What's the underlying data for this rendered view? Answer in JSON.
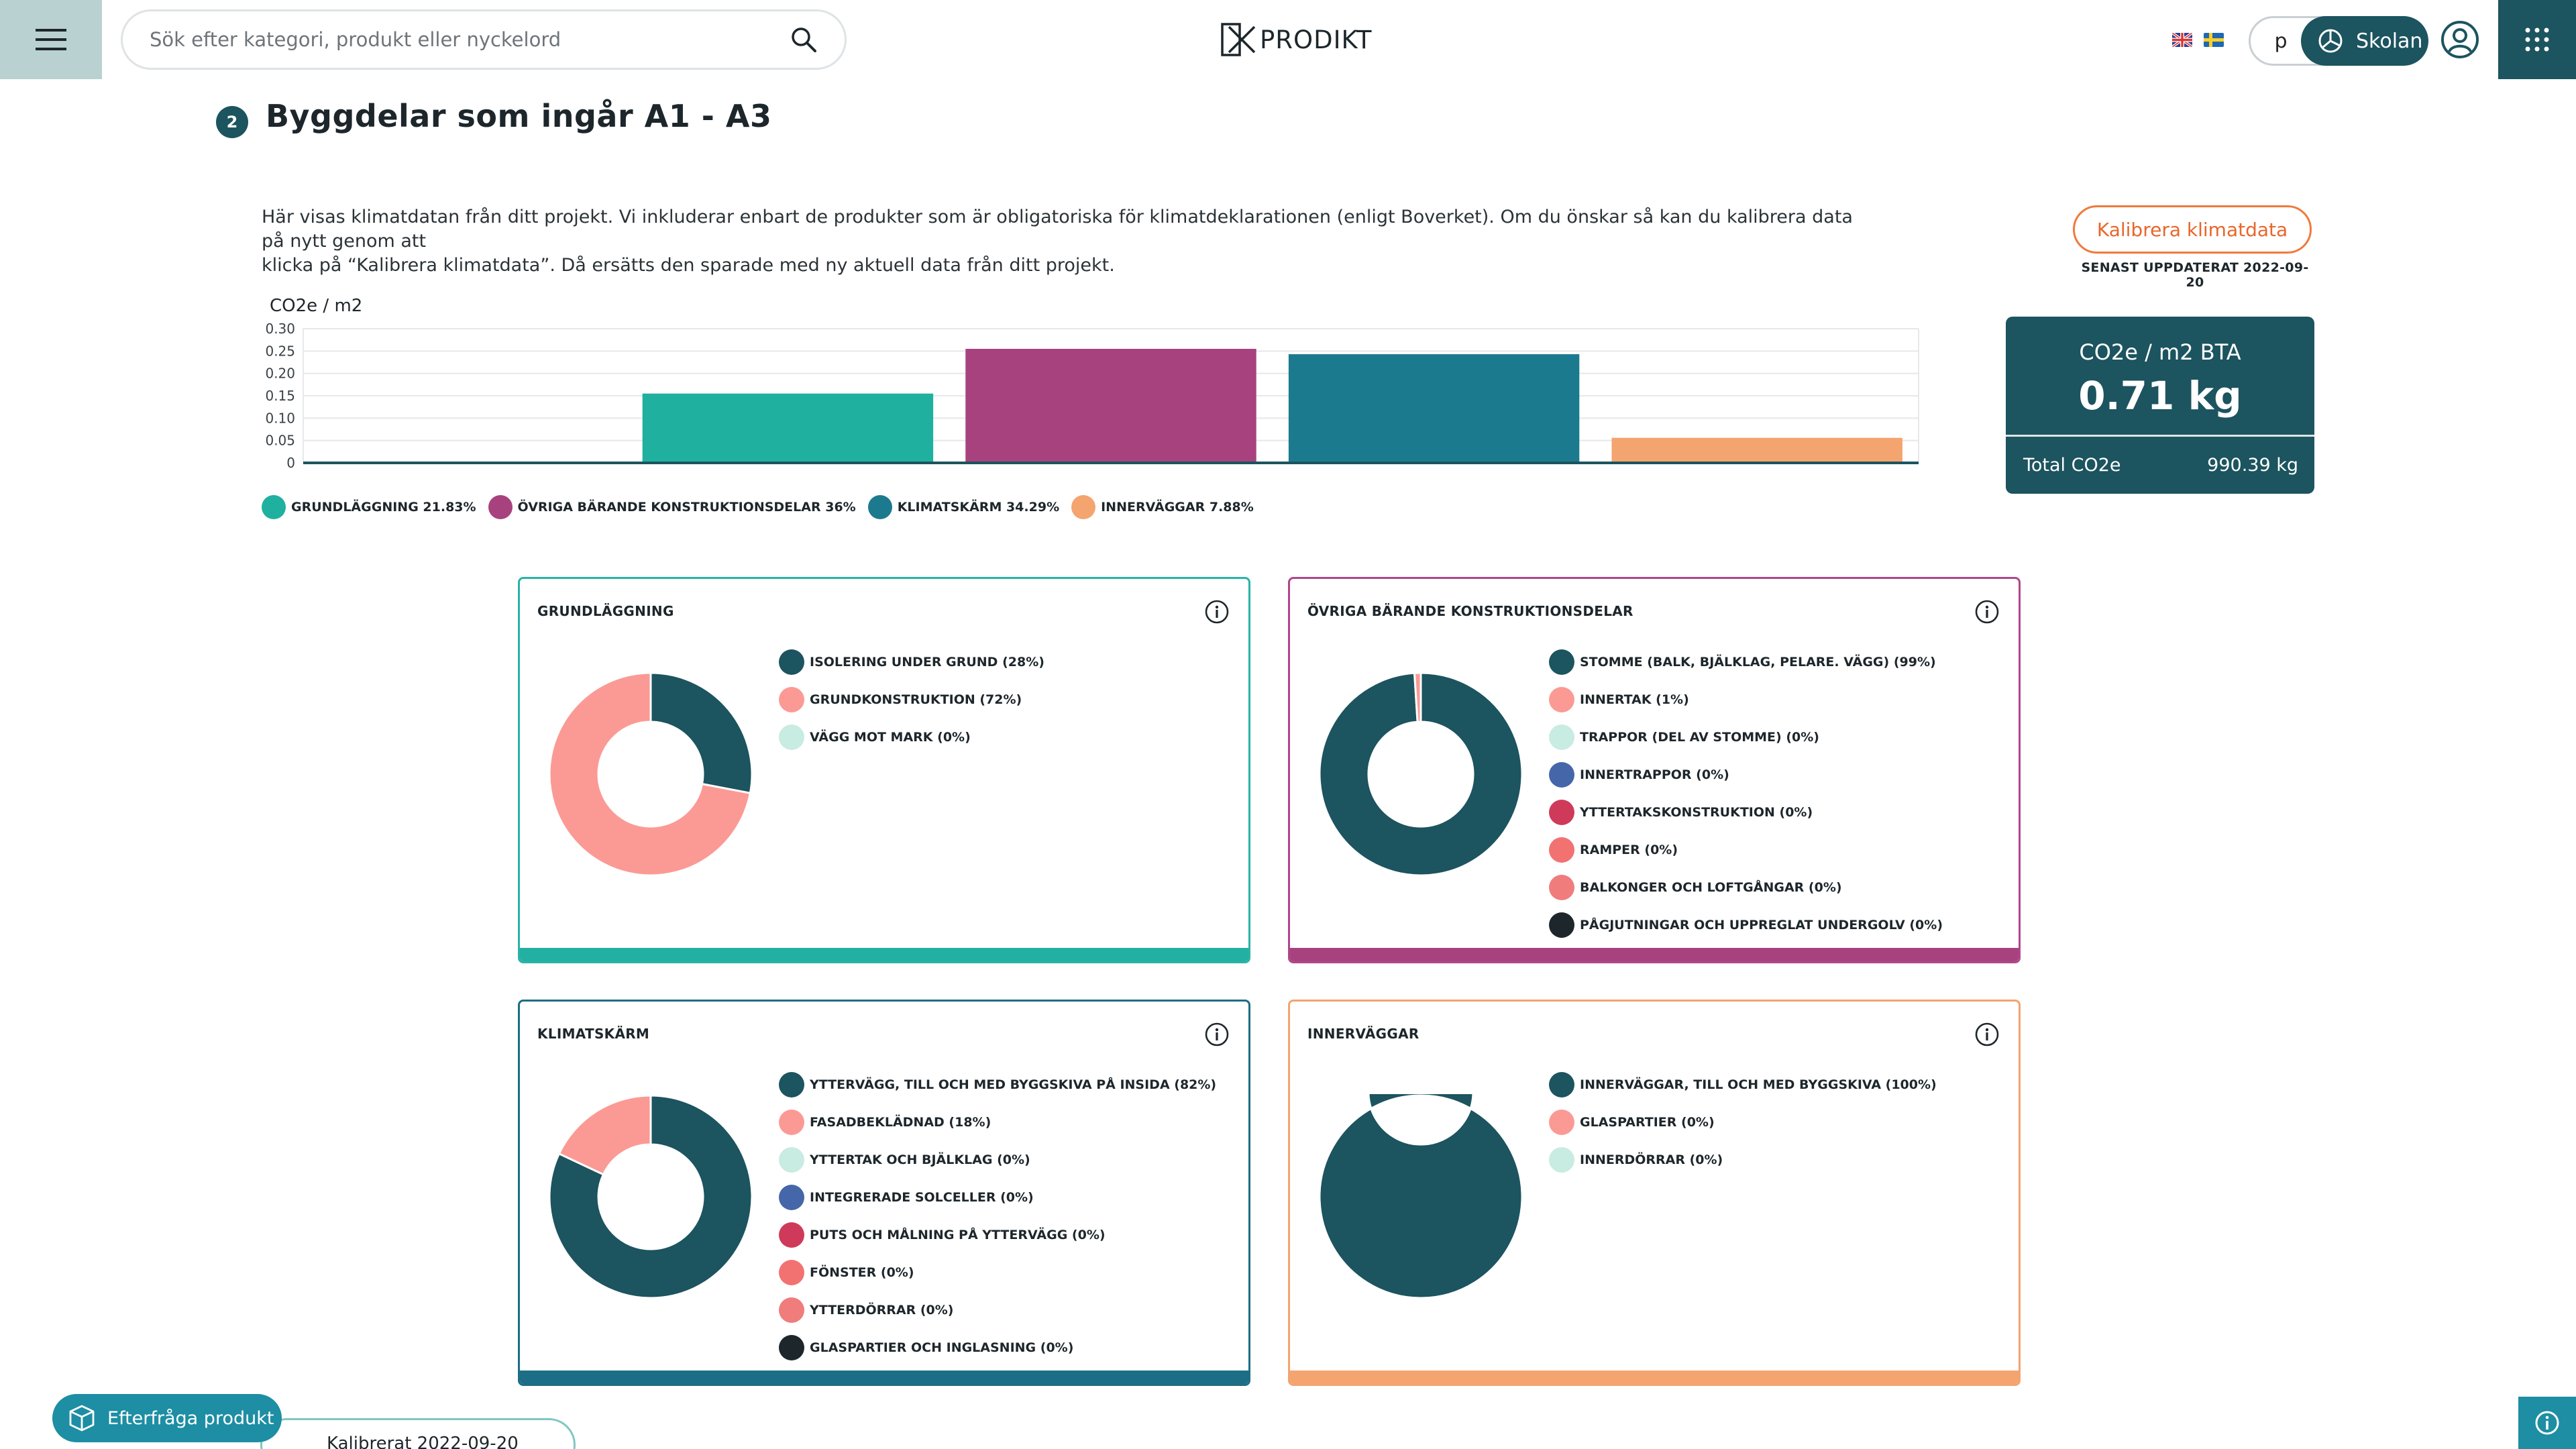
{
  "header": {
    "search_placeholder": "Sök efter kategori, produkt eller nyckelord",
    "logo_text": "PRODIKT",
    "account_initial": "p",
    "school_label": "Skolan",
    "languages": [
      "english-flag",
      "swedish-flag"
    ]
  },
  "section": {
    "step": "2",
    "title": "Byggdelar som ingår A1 - A3",
    "intro_line1": "Här visas klimatdatan från ditt projekt. Vi inkluderar enbart de produkter som är obligatoriska för klimatdeklarationen (enligt Boverket). Om du önskar så kan du kalibrera data på nytt genom att",
    "intro_line2": "klicka på “Kalibrera klimatdata”. Då ersätts den sparade med ny aktuell data från ditt projekt.",
    "calibrate_label": "Kalibrera klimatdata",
    "updated_label": "SENAST UPPDATERAT 2022-09-20"
  },
  "summary": {
    "unit_label": "CO2e / m2 BTA",
    "value": "0.71 kg",
    "total_label": "Total CO2e",
    "total_value": "990.39 kg"
  },
  "chart_data": {
    "type": "bar",
    "ylabel": "CO2e / m2",
    "ylim": [
      0,
      0.3
    ],
    "yticks": [
      "0.30",
      "0.25",
      "0.20",
      "0.15",
      "0.10",
      "0.05",
      "0"
    ],
    "grid": true,
    "legend_position": "bottom-left",
    "categories": [
      "",
      "GRUNDLÄGGNING",
      "ÖVRIGA BÄRANDE KONSTRUKTIONSDELAR",
      "KLIMATSKÄRM",
      "INNERVÄGGAR"
    ],
    "values": [
      0,
      0.155,
      0.255,
      0.243,
      0.056
    ],
    "colors": [
      "#ffffff",
      "#1fb0a0",
      "#a8427f",
      "#1c7a8e",
      "#f4a46f"
    ],
    "legend": [
      {
        "label": "GRUNDLÄGGNING 21.83%",
        "color": "#1fb0a0"
      },
      {
        "label": "ÖVRIGA BÄRANDE KONSTRUKTIONSDELAR 36%",
        "color": "#a8427f"
      },
      {
        "label": "KLIMATSKÄRM 34.29%",
        "color": "#1c7a8e"
      },
      {
        "label": "INNERVÄGGAR 7.88%",
        "color": "#f4a46f"
      }
    ]
  },
  "cards": [
    {
      "title": "GRUNDLÄGGNING",
      "border_color": "#2ab3a6",
      "bar_color": "#22b0a2",
      "slices": [
        28,
        72,
        0
      ],
      "items": [
        {
          "label": "ISOLERING UNDER GRUND (28%)",
          "color": "#1c545f"
        },
        {
          "label": "GRUNDKONSTRUKTION (72%)",
          "color": "#fb9a94"
        },
        {
          "label": "VÄGG MOT MARK (0%)",
          "color": "#c8ebe2"
        }
      ]
    },
    {
      "title": "ÖVRIGA BÄRANDE KONSTRUKTIONSDELAR",
      "border_color": "#b0468a",
      "bar_color": "#a8427f",
      "slices": [
        99,
        1,
        0,
        0,
        0,
        0,
        0,
        0
      ],
      "items": [
        {
          "label": "STOMME (BALK, BJÄLKLAG, PELARE. VÄGG) (99%)",
          "color": "#1c545f"
        },
        {
          "label": "INNERTAK (1%)",
          "color": "#fb9a94"
        },
        {
          "label": "TRAPPOR (DEL AV STOMME) (0%)",
          "color": "#c8ebe2"
        },
        {
          "label": "INNERTRAPPOR (0%)",
          "color": "#4566a8"
        },
        {
          "label": "YTTERTAKSKONSTRUKTION (0%)",
          "color": "#cf3a5a"
        },
        {
          "label": "RAMPER (0%)",
          "color": "#f27272"
        },
        {
          "label": "BALKONGER OCH LOFTGÅNGAR (0%)",
          "color": "#f07c7c"
        },
        {
          "label": "PÅGJUTNINGAR OCH UPPREGLAT UNDERGOLV (0%)",
          "color": "#1d262b"
        }
      ]
    },
    {
      "title": "KLIMATSKÄRM",
      "border_color": "#1d6e84",
      "bar_color": "#1c6e86",
      "slices": [
        82,
        18,
        0,
        0,
        0,
        0,
        0,
        0
      ],
      "items": [
        {
          "label": "YTTERVÄGG, TILL OCH MED BYGGSKIVA PÅ INSIDA (82%)",
          "color": "#1c545f"
        },
        {
          "label": "FASADBEKLÄDNAD (18%)",
          "color": "#fb9a94"
        },
        {
          "label": "YTTERTAK OCH BJÄLKLAG (0%)",
          "color": "#c8ebe2"
        },
        {
          "label": "INTEGRERADE SOLCELLER (0%)",
          "color": "#4566a8"
        },
        {
          "label": "PUTS OCH MÅLNING PÅ YTTERVÄGG (0%)",
          "color": "#cf3a5a"
        },
        {
          "label": "FÖNSTER (0%)",
          "color": "#f27272"
        },
        {
          "label": "YTTERDÖRRAR (0%)",
          "color": "#f07c7c"
        },
        {
          "label": "GLASPARTIER OCH INGLASNING (0%)",
          "color": "#1d262b"
        }
      ]
    },
    {
      "title": "INNERVÄGGAR",
      "border_color": "#f2a470",
      "bar_color": "#f4a46f",
      "slices": [
        100,
        0,
        0
      ],
      "items": [
        {
          "label": "INNERVÄGGAR, TILL OCH MED BYGGSKIVA (100%)",
          "color": "#1c545f"
        },
        {
          "label": "GLASPARTIER (0%)",
          "color": "#fb9a94"
        },
        {
          "label": "INNERDÖRRAR (0%)",
          "color": "#c8ebe2"
        }
      ]
    }
  ],
  "footer": {
    "request_label": "Efterfråga produkt",
    "peek_label": "Kalibrerat 2022-09-20"
  }
}
